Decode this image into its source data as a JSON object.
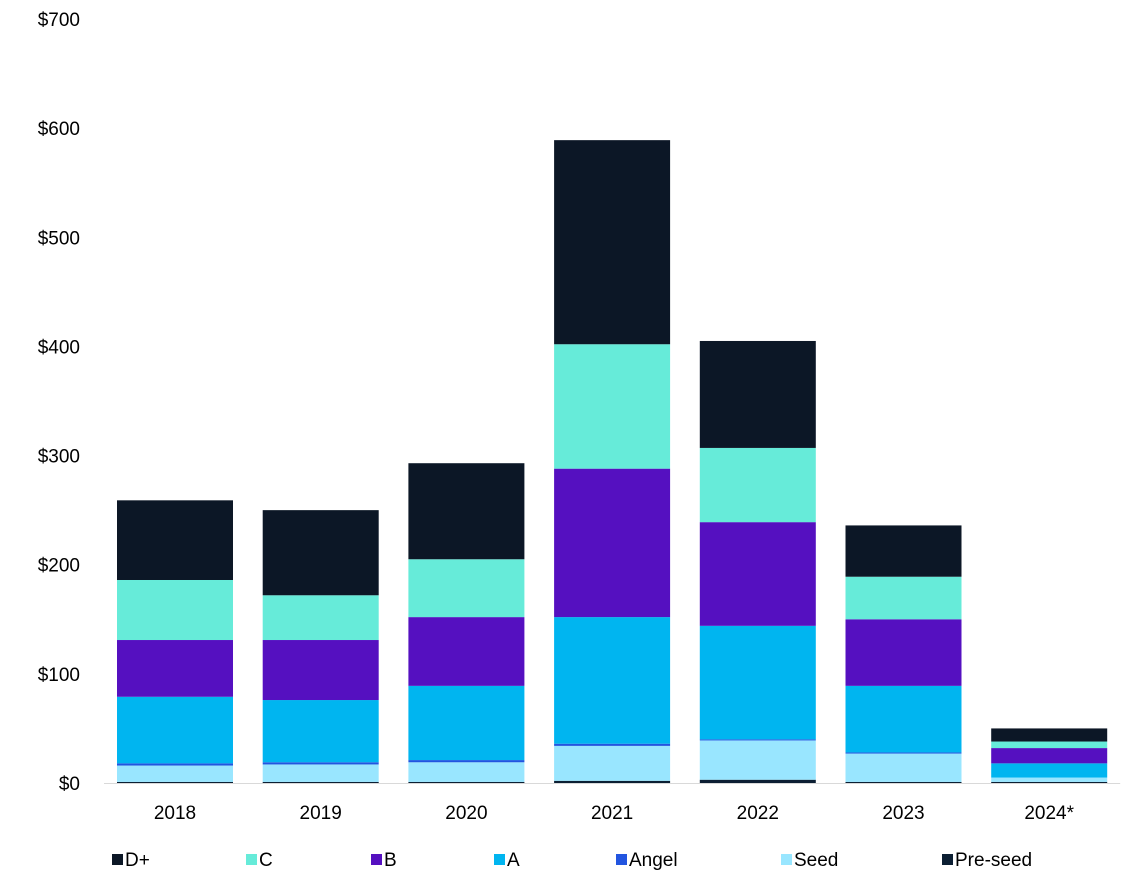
{
  "chart_data": {
    "type": "bar",
    "stacked": true,
    "categories": [
      "2018",
      "2019",
      "2020",
      "2021",
      "2022",
      "2023",
      "2024*"
    ],
    "ylim": [
      0,
      700
    ],
    "y_ticks": [
      0,
      100,
      200,
      300,
      400,
      500,
      600,
      700
    ],
    "y_tick_labels": [
      "$0",
      "$100",
      "$200",
      "$300",
      "$400",
      "$500",
      "$600",
      "$700"
    ],
    "grid": false,
    "legend_position": "bottom",
    "title": "",
    "xlabel": "",
    "ylabel": "",
    "series": [
      {
        "name": "Pre-seed",
        "color": "#0c1f33",
        "values": [
          1,
          1,
          1,
          2,
          3,
          1,
          1
        ]
      },
      {
        "name": "Seed",
        "color": "#99e6ff",
        "values": [
          15,
          16,
          18,
          32,
          36,
          26,
          4
        ]
      },
      {
        "name": "Angel",
        "color": "#2255e0",
        "values": [
          2,
          2,
          2,
          2,
          1,
          1,
          0
        ]
      },
      {
        "name": "A",
        "color": "#00b5f0",
        "values": [
          61,
          57,
          68,
          116,
          104,
          61,
          13
        ]
      },
      {
        "name": "B",
        "color": "#5510c0",
        "values": [
          52,
          55,
          63,
          136,
          95,
          61,
          14
        ]
      },
      {
        "name": "C",
        "color": "#66ebd9",
        "values": [
          55,
          41,
          53,
          114,
          68,
          39,
          6
        ]
      },
      {
        "name": "D+",
        "color": "#0c1726",
        "values": [
          73,
          78,
          88,
          187,
          98,
          47,
          12
        ]
      }
    ],
    "legend_order": [
      "D+",
      "C",
      "B",
      "A",
      "Angel",
      "Seed",
      "Pre-seed"
    ]
  }
}
